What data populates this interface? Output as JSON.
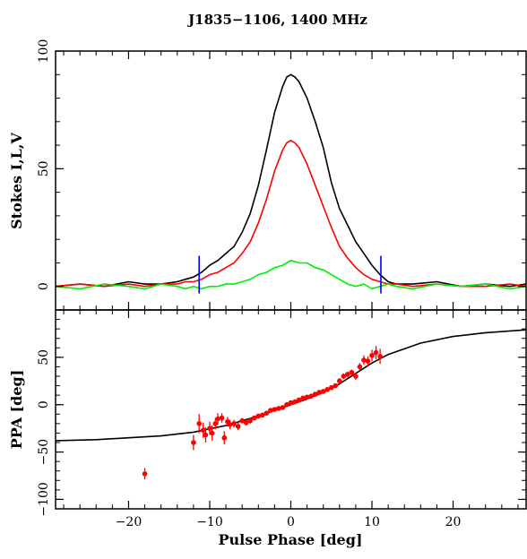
{
  "chart_data": [
    {
      "type": "line",
      "title": "J1835−1106, 1400 MHz",
      "xlabel": "",
      "ylabel": "Stokes I,L,V",
      "xlim": [
        -29,
        29
      ],
      "ylim": [
        -10,
        100
      ],
      "yticks": [
        "0",
        "50",
        "100"
      ],
      "colors": {
        "I": "#000000",
        "L": "#ff0000",
        "V": "#00ee00",
        "markers": "#0000ff"
      },
      "markers": {
        "color": "#0000ff",
        "x": [
          -11.3,
          11.1
        ]
      },
      "series": [
        {
          "name": "I",
          "color": "#000000",
          "x": [
            -29,
            -26,
            -23,
            -20,
            -18,
            -16,
            -14,
            -13,
            -12,
            -11,
            -10,
            -9,
            -8,
            -7,
            -6,
            -5,
            -4,
            -3,
            -2,
            -1,
            -0.5,
            0,
            0.5,
            1,
            2,
            3,
            4,
            5,
            6,
            7,
            8,
            9,
            10,
            11,
            12,
            13,
            15,
            18,
            21,
            24,
            27,
            29
          ],
          "y": [
            0,
            1,
            0,
            2,
            1,
            1,
            2,
            3,
            4,
            6,
            9,
            11,
            14,
            17,
            23,
            31,
            43,
            58,
            74,
            85,
            89,
            90,
            89,
            87,
            80,
            70,
            59,
            44,
            33,
            26,
            19,
            14,
            9,
            5,
            2,
            1,
            1,
            2,
            0,
            1,
            0,
            1
          ]
        },
        {
          "name": "L",
          "color": "#ff0000",
          "x": [
            -29,
            -26,
            -23,
            -20,
            -18,
            -16,
            -14,
            -13,
            -12,
            -11,
            -10,
            -9,
            -8,
            -7,
            -6,
            -5,
            -4,
            -3,
            -2,
            -1,
            -0.5,
            0,
            0.5,
            1,
            2,
            3,
            4,
            5,
            6,
            7,
            8,
            9,
            10,
            11,
            12,
            13,
            15,
            18,
            21,
            24,
            27,
            29
          ],
          "y": [
            0,
            1,
            0,
            1,
            0,
            1,
            1,
            2,
            2,
            3,
            5,
            6,
            8,
            10,
            14,
            19,
            27,
            37,
            49,
            58,
            61,
            62,
            61,
            59,
            52,
            43,
            34,
            25,
            17,
            12,
            8,
            5,
            3,
            2,
            1,
            1,
            0,
            1,
            0,
            0,
            1,
            0
          ]
        },
        {
          "name": "V",
          "color": "#00ee00",
          "x": [
            -29,
            -26,
            -23,
            -20,
            -18,
            -16,
            -14,
            -13,
            -12,
            -11,
            -10,
            -9,
            -8,
            -7,
            -6,
            -5,
            -4,
            -3,
            -2,
            -1,
            0,
            1,
            2,
            3,
            4,
            5,
            6,
            7,
            8,
            9,
            10,
            11,
            12,
            13,
            15,
            18,
            21,
            24,
            27,
            29
          ],
          "y": [
            0,
            -1,
            1,
            0,
            -1,
            1,
            0,
            -1,
            0,
            -1,
            0,
            0,
            1,
            1,
            2,
            3,
            5,
            6,
            8,
            9,
            11,
            10,
            10,
            8,
            7,
            5,
            3,
            1,
            0,
            1,
            -1,
            0,
            1,
            0,
            -1,
            1,
            0,
            1,
            -1,
            0
          ]
        }
      ]
    },
    {
      "type": "scatter",
      "xlabel": "Pulse Phase [deg]",
      "ylabel": "PPA [deg]",
      "xlim": [
        -29,
        29
      ],
      "ylim": [
        -110,
        100
      ],
      "xticks": [
        "−20",
        "−10",
        "0",
        "10",
        "20"
      ],
      "yticks": [
        "−100",
        "−50",
        "0",
        "50"
      ],
      "colors": {
        "fit": "#000000",
        "points": "#ff0000"
      },
      "fit_curve": {
        "name": "",
        "x": [
          -29,
          -24,
          -20,
          -16,
          -12,
          -8,
          -4,
          -2,
          0,
          2,
          4,
          6,
          8,
          10,
          12,
          16,
          20,
          24,
          29
        ],
        "y": [
          -38,
          -37,
          -35,
          -33,
          -29,
          -22,
          -12,
          -6,
          0,
          6,
          13,
          22,
          33,
          44,
          53,
          65,
          72,
          76,
          79
        ]
      },
      "points": {
        "name": "",
        "x": [
          -18.0,
          -12.0,
          -11.3,
          -10.8,
          -10.5,
          -10.0,
          -9.7,
          -9.3,
          -9.0,
          -8.5,
          -8.2,
          -7.8,
          -7.5,
          -7.0,
          -6.5,
          -6.0,
          -5.5,
          -5.0,
          -4.5,
          -4.0,
          -3.5,
          -3.0,
          -2.5,
          -2.0,
          -1.5,
          -1.0,
          -0.5,
          0.0,
          0.5,
          1.0,
          1.5,
          2.0,
          2.5,
          3.0,
          3.5,
          4.0,
          4.5,
          5.0,
          5.5,
          6.0,
          6.5,
          7.0,
          7.5,
          8.0,
          8.5,
          9.0,
          9.5,
          10.0,
          10.5,
          11.0
        ],
        "y": [
          -73,
          -40,
          -20,
          -27,
          -32,
          -25,
          -30,
          -20,
          -15,
          -14,
          -35,
          -18,
          -21,
          -20,
          -23,
          -17,
          -19,
          -17,
          -14,
          -12,
          -11,
          -9,
          -6,
          -5,
          -4,
          -3,
          0,
          2,
          3,
          5,
          7,
          8,
          9,
          11,
          13,
          14,
          16,
          18,
          20,
          25,
          30,
          32,
          34,
          30,
          40,
          47,
          46,
          52,
          55,
          51
        ],
        "err": [
          6,
          8,
          10,
          8,
          8,
          7,
          8,
          6,
          6,
          5,
          7,
          5,
          5,
          4,
          4,
          3,
          3,
          3,
          2,
          2,
          2,
          2,
          2,
          2,
          2,
          2,
          2,
          2,
          2,
          2,
          2,
          2,
          2,
          2,
          2,
          2,
          2,
          2,
          2,
          3,
          3,
          3,
          3,
          4,
          4,
          5,
          5,
          6,
          7,
          8
        ]
      }
    }
  ]
}
